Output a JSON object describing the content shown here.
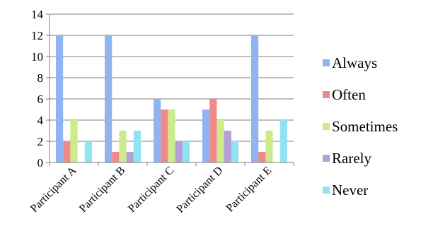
{
  "chart_data": {
    "type": "bar",
    "categories": [
      "Participant A",
      "Participant B",
      "Participant C",
      "Participant D",
      "Participant E"
    ],
    "series": [
      {
        "name": "Always",
        "color": "#8FB4F0",
        "values": [
          12,
          12,
          6,
          5,
          12
        ]
      },
      {
        "name": "Often",
        "color": "#F08A8A",
        "values": [
          2,
          1,
          5,
          6,
          1
        ]
      },
      {
        "name": "Sometimes",
        "color": "#CDEB8B",
        "values": [
          4,
          3,
          5,
          4,
          3
        ]
      },
      {
        "name": "Rarely",
        "color": "#B3A0D6",
        "values": [
          0,
          1,
          2,
          3,
          0
        ]
      },
      {
        "name": "Never",
        "color": "#8FE3F2",
        "values": [
          2,
          3,
          2,
          2,
          4
        ]
      }
    ],
    "yticks": [
      "0",
      "2",
      "4",
      "6",
      "8",
      "10",
      "12",
      "14"
    ],
    "ylim": [
      0,
      14
    ],
    "grid": true,
    "legend_position": "right"
  }
}
